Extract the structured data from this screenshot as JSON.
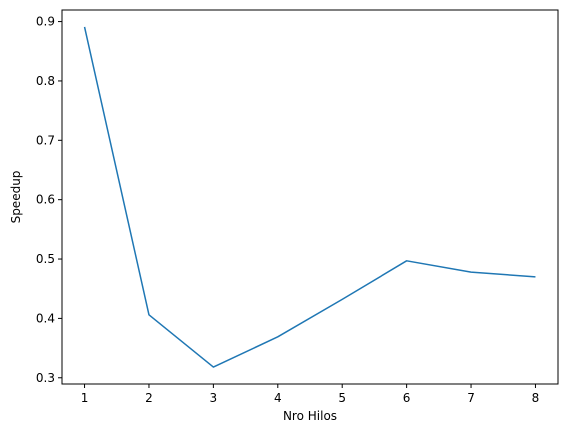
{
  "chart_data": {
    "type": "line",
    "title": "",
    "xlabel": "Nro Hilos",
    "ylabel": "Speedup",
    "x": [
      1,
      2,
      3,
      4,
      5,
      6,
      7,
      8
    ],
    "series": [
      {
        "values": [
          0.891,
          0.406,
          0.318,
          0.369,
          0.432,
          0.497,
          0.478,
          0.47
        ],
        "color": "#1f77b4"
      }
    ],
    "xlim": [
      0.65,
      8.35
    ],
    "ylim": [
      0.2895,
      0.9195
    ],
    "xticks": [
      1,
      2,
      3,
      4,
      5,
      6,
      7,
      8
    ],
    "xtick_labels": [
      "1",
      "2",
      "3",
      "4",
      "5",
      "6",
      "7",
      "8"
    ],
    "yticks": [
      0.3,
      0.4,
      0.5,
      0.6,
      0.7,
      0.8,
      0.9
    ],
    "ytick_labels": [
      "0.3",
      "0.4",
      "0.5",
      "0.6",
      "0.7",
      "0.8",
      "0.9"
    ],
    "grid": false,
    "legend": false
  }
}
